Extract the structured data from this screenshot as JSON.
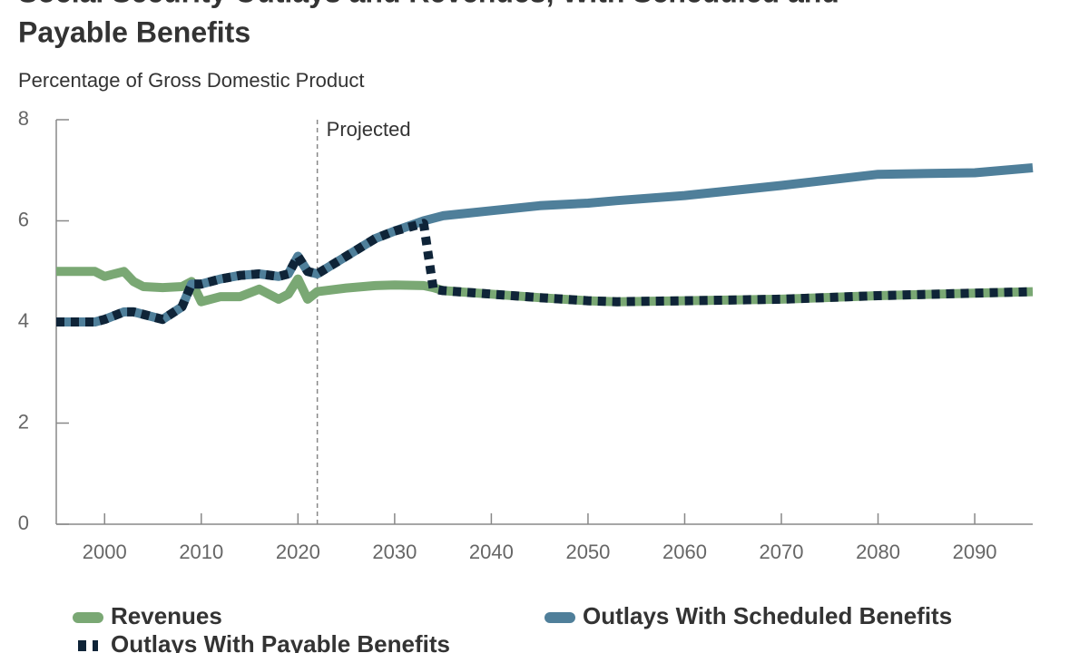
{
  "chart_data": {
    "type": "line",
    "title_lines": [
      "Social Security Outlays and Revenues, With Scheduled and",
      "Payable Benefits"
    ],
    "subtitle": "Percentage of Gross Domestic Product",
    "annotation": {
      "text": "Projected",
      "x": 2022
    },
    "x": [
      1995,
      1999,
      2000,
      2002,
      2003,
      2004,
      2006,
      2008,
      2009,
      2010,
      2012,
      2014,
      2016,
      2018,
      2019,
      2020,
      2021,
      2022,
      2025,
      2028,
      2030,
      2033,
      2034,
      2035,
      2040,
      2045,
      2050,
      2053,
      2060,
      2070,
      2080,
      2090,
      2096
    ],
    "series": [
      {
        "name": "Revenues",
        "color": "#7aa874",
        "style": "solid",
        "values": [
          5.0,
          5.0,
          4.9,
          5.0,
          4.8,
          4.7,
          4.68,
          4.7,
          4.8,
          4.4,
          4.5,
          4.5,
          4.65,
          4.45,
          4.55,
          4.85,
          4.45,
          4.6,
          4.67,
          4.72,
          4.73,
          4.72,
          4.68,
          4.62,
          4.55,
          4.48,
          4.42,
          4.4,
          4.42,
          4.45,
          4.52,
          4.57,
          4.6
        ]
      },
      {
        "name": "Outlays With Scheduled Benefits",
        "color": "#4f7f9a",
        "style": "solid",
        "values": [
          4.0,
          4.0,
          4.05,
          4.2,
          4.2,
          4.15,
          4.05,
          4.3,
          4.75,
          4.75,
          4.85,
          4.92,
          4.95,
          4.9,
          4.95,
          5.3,
          5.0,
          4.95,
          5.3,
          5.65,
          5.8,
          6.0,
          6.05,
          6.1,
          6.2,
          6.3,
          6.35,
          6.4,
          6.5,
          6.7,
          6.92,
          6.95,
          7.05
        ]
      },
      {
        "name": "Outlays With Payable Benefits",
        "color": "#0f2438",
        "style": "dashed",
        "values": [
          4.0,
          4.0,
          4.05,
          4.2,
          4.2,
          4.15,
          4.05,
          4.3,
          4.75,
          4.75,
          4.85,
          4.92,
          4.95,
          4.9,
          4.95,
          5.3,
          5.0,
          4.95,
          5.3,
          5.65,
          5.8,
          5.95,
          4.65,
          4.62,
          4.55,
          4.48,
          4.42,
          4.4,
          4.42,
          4.45,
          4.52,
          4.57,
          4.6
        ]
      }
    ],
    "xlim": [
      1995,
      2096
    ],
    "xticks": [
      2000,
      2010,
      2020,
      2030,
      2040,
      2050,
      2060,
      2070,
      2080,
      2090
    ],
    "ylim": [
      0,
      8
    ],
    "yticks": [
      0,
      2,
      4,
      6,
      8
    ],
    "legend": "bottom"
  }
}
